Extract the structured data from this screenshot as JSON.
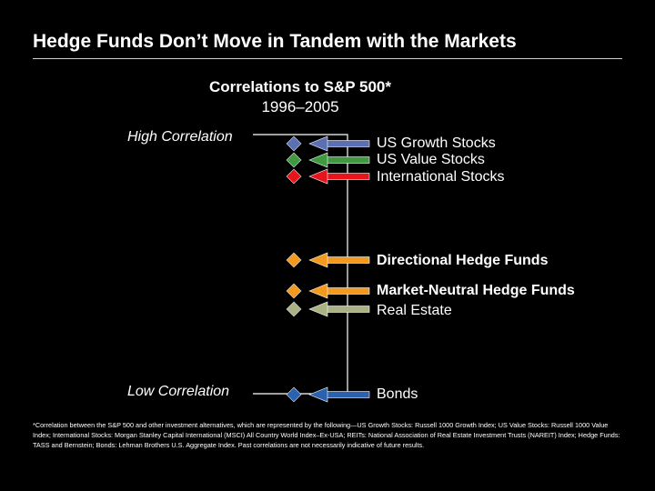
{
  "slide": {
    "title": "Hedge Funds Don’t Move in Tandem with the Markets",
    "subtitle": "Correlations to S&P 500*",
    "period": "1996–2005",
    "high_label": "High Correlation",
    "low_label": "Low Correlation",
    "footnote": "*Correlation between the S&P 500 and other investment alternatives, which are represented by the following—US Growth Stocks: Russell 1000 Growth Index; US Value Stocks: Russell 1000 Value Index; International Stocks: Morgan Stanley Capital International (MSCI) All Country World Index–Ex-USA; REITs: National Association of Real Estate Investment Trusts (NAREIT) Index; Hedge Funds: TASS and Bernstein; Bonds: Lehman Brothers U.S. Aggregate Index. Past correlations are not necessarily indicative of future results."
  },
  "items": [
    {
      "label": "US Growth Stocks",
      "color": "#5b6fb5",
      "bold": false
    },
    {
      "label": "US Value Stocks",
      "color": "#3f9a3f",
      "bold": false
    },
    {
      "label": "International Stocks",
      "color": "#e8141b",
      "bold": false
    },
    {
      "label": "Directional Hedge Funds",
      "color": "#f39a1e",
      "bold": true
    },
    {
      "label": "Market-Neutral Hedge Funds",
      "color": "#f39a1e",
      "bold": true
    },
    {
      "label": "Real Estate",
      "color": "#a9b283",
      "bold": false
    },
    {
      "label": "Bonds",
      "color": "#2b62b0",
      "bold": false
    }
  ]
}
